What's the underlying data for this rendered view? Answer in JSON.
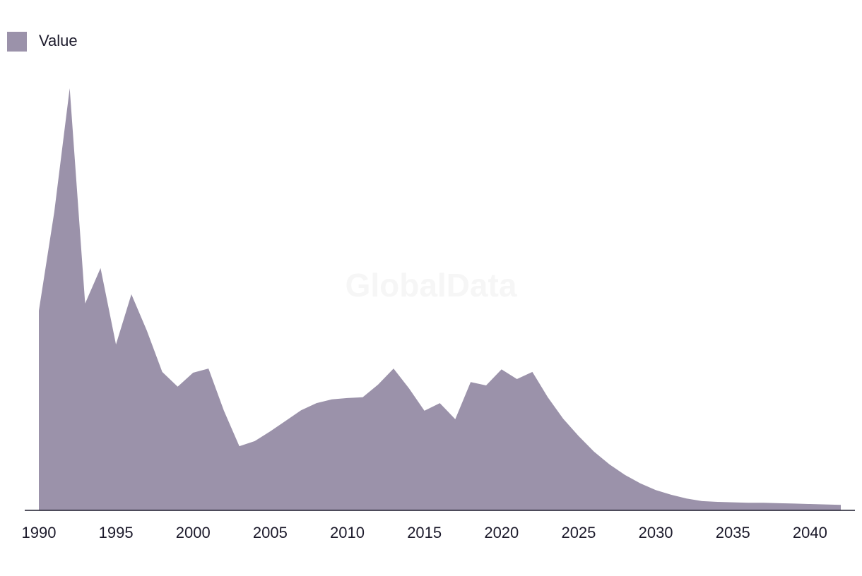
{
  "chart_data": {
    "type": "area",
    "watermark": "GlobalData",
    "x": [
      1990,
      1991,
      1992,
      1993,
      1994,
      1995,
      1996,
      1997,
      1998,
      1999,
      2000,
      2001,
      2002,
      2003,
      2004,
      2005,
      2006,
      2007,
      2008,
      2009,
      2010,
      2011,
      2012,
      2013,
      2014,
      2015,
      2016,
      2017,
      2018,
      2019,
      2020,
      2021,
      2022,
      2023,
      2024,
      2025,
      2026,
      2027,
      2028,
      2029,
      2030,
      2031,
      2032,
      2033,
      2034,
      2035,
      2036,
      2037,
      2038,
      2039,
      2040,
      2041,
      2042
    ],
    "series": [
      {
        "name": "Value",
        "color": "#9b92aa",
        "values": [
          47.3,
          70.7,
          100,
          49.0,
          57.4,
          39.3,
          51.2,
          42.6,
          32.8,
          29.3,
          32.6,
          33.6,
          23.6,
          15.2,
          16.4,
          18.7,
          21.2,
          23.7,
          25.4,
          26.3,
          26.6,
          26.8,
          29.8,
          33.6,
          28.9,
          23.6,
          25.4,
          21.6,
          30.4,
          29.6,
          33.4,
          31.1,
          32.8,
          26.8,
          21.7,
          17.6,
          13.9,
          10.9,
          8.4,
          6.4,
          4.8,
          3.7,
          2.8,
          2.2,
          2.0,
          1.9,
          1.8,
          1.8,
          1.7,
          1.6,
          1.5,
          1.4,
          1.3
        ]
      }
    ],
    "xlim": [
      1990,
      2042
    ],
    "xticks": [
      1990,
      1995,
      2000,
      2005,
      2010,
      2015,
      2020,
      2025,
      2030,
      2035,
      2040
    ],
    "ylim": [
      0,
      100
    ],
    "legend": "top-left"
  }
}
